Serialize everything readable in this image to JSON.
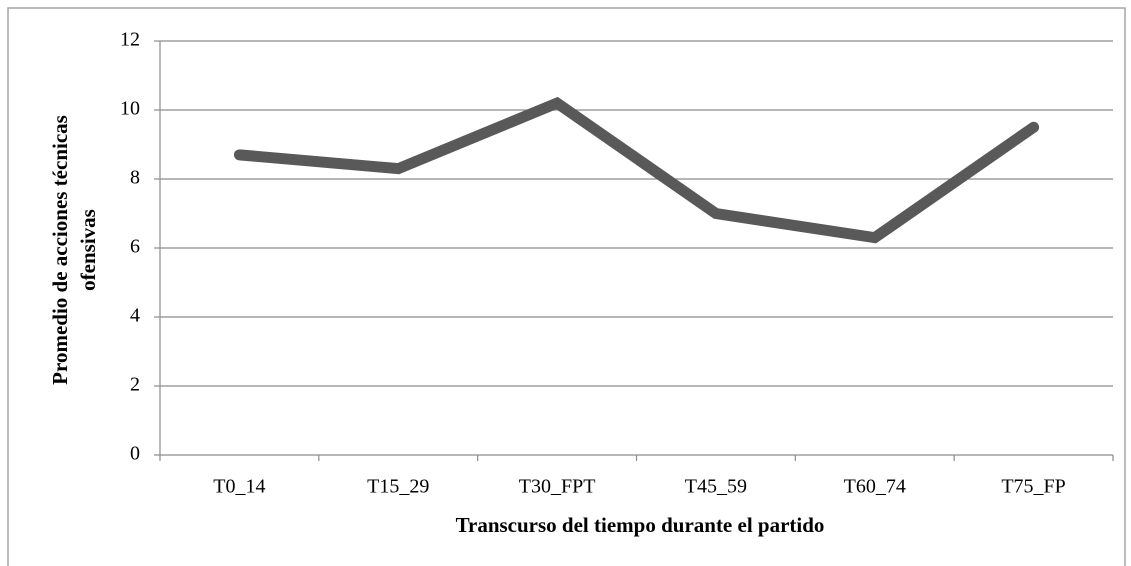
{
  "chart_data": {
    "type": "line",
    "xlabel": "Transcurso del tiempo durante el partido",
    "ylabel": [
      "Promedio de acciones técnicas",
      "ofensivas"
    ],
    "categories": [
      "T0_14",
      "T15_29",
      "T30_FPT",
      "T45_59",
      "T60_74",
      "T75_FP"
    ],
    "values": [
      8.7,
      8.3,
      10.2,
      7.0,
      6.3,
      9.5
    ],
    "color": "#595959",
    "ylim": [
      0,
      12
    ],
    "yticks": [
      0,
      2,
      4,
      6,
      8,
      10,
      12
    ],
    "grid": true
  }
}
